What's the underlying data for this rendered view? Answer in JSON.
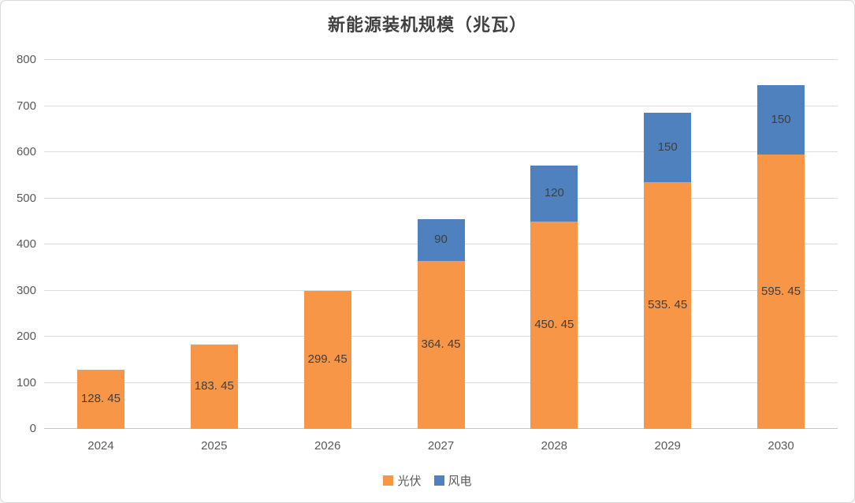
{
  "chart_data": {
    "type": "bar",
    "stacked": true,
    "title": "新能源装机规模（兆瓦）",
    "categories": [
      "2024",
      "2025",
      "2026",
      "2027",
      "2028",
      "2029",
      "2030"
    ],
    "series": [
      {
        "name": "光伏",
        "color": "#F79646",
        "values": [
          128.45,
          183.45,
          299.45,
          364.45,
          450.45,
          535.45,
          595.45
        ],
        "labels": [
          "128. 45",
          "183. 45",
          "299. 45",
          "364. 45",
          "450. 45",
          "535. 45",
          "595. 45"
        ]
      },
      {
        "name": "风电",
        "color": "#4E81BD",
        "values": [
          0,
          0,
          0,
          90,
          120,
          150,
          150
        ],
        "labels": [
          "",
          "",
          "",
          "90",
          "120",
          "150",
          "150"
        ]
      }
    ],
    "totals": [
      128.45,
      183.45,
      299.45,
      454.45,
      570.45,
      685.45,
      745.45
    ],
    "ylim": [
      0,
      800
    ],
    "ytick_interval": 100,
    "ytick_labels": [
      "0",
      "100",
      "200",
      "300",
      "400",
      "500",
      "600",
      "700",
      "800"
    ],
    "grid": true,
    "legend_position": "bottom-center",
    "legend": [
      "光伏",
      "风电"
    ]
  },
  "colors": {
    "solar": "#F79646",
    "wind": "#4E81BD",
    "bar_label_text": "#3F3F3F",
    "axis_text": "#595959",
    "title_text": "#404040",
    "gridline": "#DCDCDC",
    "frame_border": "#D9D9D9",
    "background": "#FFFFFF"
  }
}
